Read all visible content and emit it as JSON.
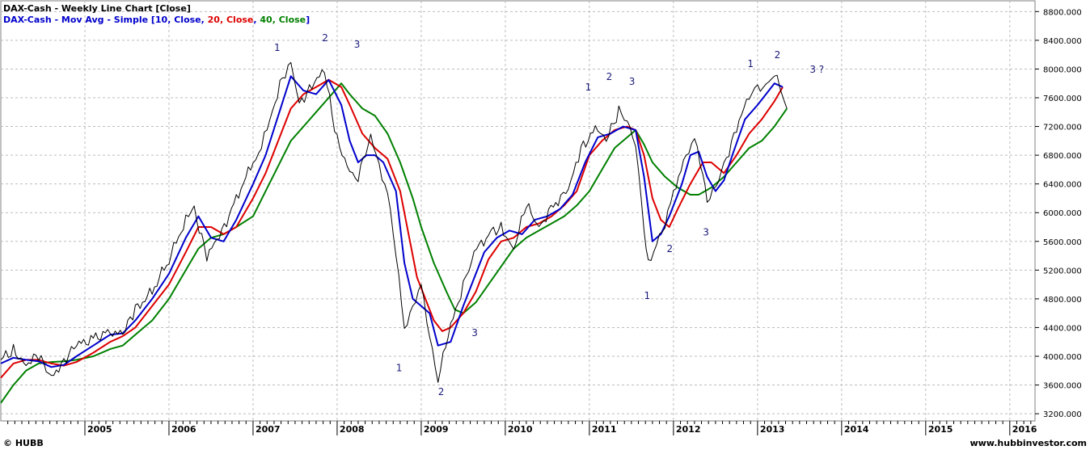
{
  "header": {
    "title": "DAX-Cash - Weekly Line Chart [Close]",
    "indicator_prefix": "DAX-Cash - Mov Avg - Simple [",
    "ma1_label": "10, Close",
    "ma2_label": "20, Close",
    "ma3_label": "40, Close",
    "sep": ", ",
    "suffix": "]"
  },
  "footer": {
    "left": "© HUBB",
    "right": "www.hubbinvestor.com"
  },
  "colors": {
    "price": "#000000",
    "ma10": "#0000cc",
    "ma20": "#dd0000",
    "ma40": "#008000",
    "grid": "#bdbdbd",
    "wave_labels": "#1a1a7a"
  },
  "chart_data": {
    "type": "line",
    "ylim": [
      3100,
      8950
    ],
    "xlim": [
      2004.0,
      2016.3
    ],
    "y_ticks": [
      "3200.000",
      "3600.000",
      "4000.000",
      "4400.000",
      "4800.000",
      "5200.000",
      "5600.000",
      "6000.000",
      "6400.000",
      "6800.000",
      "7200.000",
      "7600.000",
      "8000.000",
      "8400.000",
      "8800.000"
    ],
    "x_ticks": [
      "2005",
      "2006",
      "2007",
      "2008",
      "2009",
      "2010",
      "2011",
      "2012",
      "2013",
      "2014",
      "2015",
      "2016"
    ],
    "series": [
      {
        "name": "DAX-Cash",
        "points": [
          [
            2004.0,
            3950
          ],
          [
            2004.15,
            4080
          ],
          [
            2004.3,
            3900
          ],
          [
            2004.45,
            4000
          ],
          [
            2004.6,
            3700
          ],
          [
            2004.75,
            3950
          ],
          [
            2004.9,
            4150
          ],
          [
            2005.1,
            4250
          ],
          [
            2005.3,
            4350
          ],
          [
            2005.45,
            4300
          ],
          [
            2005.6,
            4650
          ],
          [
            2005.8,
            4900
          ],
          [
            2006.0,
            5350
          ],
          [
            2006.2,
            5900
          ],
          [
            2006.3,
            6050
          ],
          [
            2006.45,
            5400
          ],
          [
            2006.6,
            5650
          ],
          [
            2006.8,
            6200
          ],
          [
            2007.0,
            6700
          ],
          [
            2007.1,
            6900
          ],
          [
            2007.2,
            7300
          ],
          [
            2007.35,
            7900
          ],
          [
            2007.45,
            8050
          ],
          [
            2007.55,
            7500
          ],
          [
            2007.7,
            7800
          ],
          [
            2007.85,
            7950
          ],
          [
            2008.0,
            7000
          ],
          [
            2008.15,
            6600
          ],
          [
            2008.25,
            6500
          ],
          [
            2008.4,
            7050
          ],
          [
            2008.5,
            6650
          ],
          [
            2008.6,
            6300
          ],
          [
            2008.7,
            5400
          ],
          [
            2008.8,
            4400
          ],
          [
            2008.9,
            4700
          ],
          [
            2009.0,
            4950
          ],
          [
            2009.1,
            4300
          ],
          [
            2009.2,
            3700
          ],
          [
            2009.35,
            4400
          ],
          [
            2009.5,
            5000
          ],
          [
            2009.6,
            5400
          ],
          [
            2009.8,
            5700
          ],
          [
            2009.95,
            5800
          ],
          [
            2010.1,
            5500
          ],
          [
            2010.25,
            6100
          ],
          [
            2010.4,
            5800
          ],
          [
            2010.6,
            6150
          ],
          [
            2010.75,
            6300
          ],
          [
            2010.9,
            6900
          ],
          [
            2011.1,
            7200
          ],
          [
            2011.2,
            7000
          ],
          [
            2011.35,
            7400
          ],
          [
            2011.45,
            7300
          ],
          [
            2011.55,
            7000
          ],
          [
            2011.65,
            5700
          ],
          [
            2011.7,
            5300
          ],
          [
            2011.8,
            5600
          ],
          [
            2011.9,
            5800
          ],
          [
            2012.0,
            6300
          ],
          [
            2012.15,
            6800
          ],
          [
            2012.25,
            7000
          ],
          [
            2012.35,
            6550
          ],
          [
            2012.4,
            6200
          ],
          [
            2012.5,
            6300
          ],
          [
            2012.6,
            6650
          ],
          [
            2012.75,
            7200
          ],
          [
            2012.9,
            7600
          ],
          [
            2013.0,
            7700
          ],
          [
            2013.1,
            7800
          ],
          [
            2013.2,
            7950
          ],
          [
            2013.3,
            7600
          ],
          [
            2013.35,
            7450
          ]
        ]
      },
      {
        "name": "10, Close",
        "points": [
          [
            2004.0,
            3900
          ],
          [
            2004.15,
            3980
          ],
          [
            2004.3,
            3950
          ],
          [
            2004.45,
            3930
          ],
          [
            2004.6,
            3850
          ],
          [
            2004.75,
            3880
          ],
          [
            2004.9,
            4000
          ],
          [
            2005.1,
            4150
          ],
          [
            2005.3,
            4300
          ],
          [
            2005.45,
            4320
          ],
          [
            2005.6,
            4500
          ],
          [
            2005.8,
            4800
          ],
          [
            2006.0,
            5150
          ],
          [
            2006.2,
            5650
          ],
          [
            2006.35,
            5950
          ],
          [
            2006.5,
            5650
          ],
          [
            2006.65,
            5600
          ],
          [
            2006.8,
            5900
          ],
          [
            2007.0,
            6400
          ],
          [
            2007.15,
            6800
          ],
          [
            2007.3,
            7350
          ],
          [
            2007.45,
            7900
          ],
          [
            2007.6,
            7700
          ],
          [
            2007.75,
            7650
          ],
          [
            2007.9,
            7850
          ],
          [
            2008.05,
            7500
          ],
          [
            2008.15,
            7000
          ],
          [
            2008.25,
            6700
          ],
          [
            2008.35,
            6800
          ],
          [
            2008.45,
            6800
          ],
          [
            2008.55,
            6700
          ],
          [
            2008.7,
            6300
          ],
          [
            2008.8,
            5300
          ],
          [
            2008.9,
            4800
          ],
          [
            2009.0,
            4700
          ],
          [
            2009.1,
            4600
          ],
          [
            2009.2,
            4150
          ],
          [
            2009.35,
            4200
          ],
          [
            2009.5,
            4700
          ],
          [
            2009.6,
            5000
          ],
          [
            2009.75,
            5450
          ],
          [
            2009.9,
            5650
          ],
          [
            2010.05,
            5750
          ],
          [
            2010.2,
            5700
          ],
          [
            2010.35,
            5900
          ],
          [
            2010.5,
            5950
          ],
          [
            2010.65,
            6050
          ],
          [
            2010.8,
            6250
          ],
          [
            2010.95,
            6700
          ],
          [
            2011.1,
            7050
          ],
          [
            2011.25,
            7100
          ],
          [
            2011.4,
            7200
          ],
          [
            2011.55,
            7150
          ],
          [
            2011.65,
            6500
          ],
          [
            2011.75,
            5600
          ],
          [
            2011.85,
            5700
          ],
          [
            2011.95,
            5950
          ],
          [
            2012.1,
            6400
          ],
          [
            2012.2,
            6800
          ],
          [
            2012.3,
            6850
          ],
          [
            2012.4,
            6500
          ],
          [
            2012.5,
            6300
          ],
          [
            2012.6,
            6450
          ],
          [
            2012.7,
            6800
          ],
          [
            2012.85,
            7300
          ],
          [
            2013.0,
            7500
          ],
          [
            2013.1,
            7650
          ],
          [
            2013.2,
            7800
          ],
          [
            2013.3,
            7750
          ]
        ]
      },
      {
        "name": "20, Close",
        "points": [
          [
            2004.0,
            3700
          ],
          [
            2004.15,
            3900
          ],
          [
            2004.3,
            3950
          ],
          [
            2004.45,
            3950
          ],
          [
            2004.6,
            3900
          ],
          [
            2004.75,
            3870
          ],
          [
            2004.9,
            3920
          ],
          [
            2005.1,
            4050
          ],
          [
            2005.3,
            4200
          ],
          [
            2005.45,
            4280
          ],
          [
            2005.6,
            4400
          ],
          [
            2005.8,
            4700
          ],
          [
            2006.0,
            5000
          ],
          [
            2006.2,
            5450
          ],
          [
            2006.35,
            5800
          ],
          [
            2006.5,
            5800
          ],
          [
            2006.65,
            5700
          ],
          [
            2006.8,
            5800
          ],
          [
            2007.0,
            6200
          ],
          [
            2007.15,
            6550
          ],
          [
            2007.3,
            7000
          ],
          [
            2007.45,
            7450
          ],
          [
            2007.6,
            7650
          ],
          [
            2007.75,
            7750
          ],
          [
            2007.9,
            7850
          ],
          [
            2008.05,
            7750
          ],
          [
            2008.15,
            7500
          ],
          [
            2008.3,
            7100
          ],
          [
            2008.45,
            6900
          ],
          [
            2008.6,
            6750
          ],
          [
            2008.75,
            6300
          ],
          [
            2008.85,
            5700
          ],
          [
            2008.95,
            5100
          ],
          [
            2009.05,
            4800
          ],
          [
            2009.15,
            4500
          ],
          [
            2009.25,
            4350
          ],
          [
            2009.35,
            4400
          ],
          [
            2009.5,
            4600
          ],
          [
            2009.65,
            4900
          ],
          [
            2009.8,
            5350
          ],
          [
            2009.95,
            5600
          ],
          [
            2010.1,
            5650
          ],
          [
            2010.25,
            5800
          ],
          [
            2010.4,
            5850
          ],
          [
            2010.55,
            5950
          ],
          [
            2010.7,
            6100
          ],
          [
            2010.85,
            6300
          ],
          [
            2011.0,
            6800
          ],
          [
            2011.15,
            7000
          ],
          [
            2011.3,
            7150
          ],
          [
            2011.45,
            7200
          ],
          [
            2011.55,
            7150
          ],
          [
            2011.65,
            6800
          ],
          [
            2011.75,
            6200
          ],
          [
            2011.85,
            5900
          ],
          [
            2011.95,
            5800
          ],
          [
            2012.05,
            6050
          ],
          [
            2012.2,
            6400
          ],
          [
            2012.35,
            6700
          ],
          [
            2012.45,
            6700
          ],
          [
            2012.6,
            6550
          ],
          [
            2012.75,
            6800
          ],
          [
            2012.9,
            7100
          ],
          [
            2013.05,
            7300
          ],
          [
            2013.2,
            7550
          ],
          [
            2013.3,
            7750
          ]
        ]
      },
      {
        "name": "40, Close",
        "points": [
          [
            2004.0,
            3350
          ],
          [
            2004.15,
            3600
          ],
          [
            2004.3,
            3800
          ],
          [
            2004.45,
            3900
          ],
          [
            2004.6,
            3920
          ],
          [
            2004.75,
            3930
          ],
          [
            2004.9,
            3950
          ],
          [
            2005.1,
            4000
          ],
          [
            2005.3,
            4100
          ],
          [
            2005.45,
            4150
          ],
          [
            2005.6,
            4300
          ],
          [
            2005.8,
            4500
          ],
          [
            2006.0,
            4800
          ],
          [
            2006.2,
            5200
          ],
          [
            2006.35,
            5500
          ],
          [
            2006.5,
            5650
          ],
          [
            2006.65,
            5700
          ],
          [
            2006.8,
            5800
          ],
          [
            2007.0,
            5950
          ],
          [
            2007.15,
            6300
          ],
          [
            2007.3,
            6650
          ],
          [
            2007.45,
            7000
          ],
          [
            2007.6,
            7200
          ],
          [
            2007.75,
            7400
          ],
          [
            2007.9,
            7600
          ],
          [
            2008.05,
            7800
          ],
          [
            2008.15,
            7650
          ],
          [
            2008.3,
            7450
          ],
          [
            2008.45,
            7350
          ],
          [
            2008.6,
            7100
          ],
          [
            2008.75,
            6700
          ],
          [
            2008.9,
            6200
          ],
          [
            2009.0,
            5800
          ],
          [
            2009.15,
            5300
          ],
          [
            2009.3,
            4900
          ],
          [
            2009.4,
            4650
          ],
          [
            2009.5,
            4600
          ],
          [
            2009.65,
            4750
          ],
          [
            2009.8,
            5000
          ],
          [
            2009.95,
            5250
          ],
          [
            2010.1,
            5500
          ],
          [
            2010.25,
            5650
          ],
          [
            2010.4,
            5750
          ],
          [
            2010.55,
            5850
          ],
          [
            2010.7,
            5950
          ],
          [
            2010.85,
            6100
          ],
          [
            2011.0,
            6300
          ],
          [
            2011.15,
            6600
          ],
          [
            2011.3,
            6900
          ],
          [
            2011.45,
            7050
          ],
          [
            2011.55,
            7150
          ],
          [
            2011.65,
            6950
          ],
          [
            2011.75,
            6700
          ],
          [
            2011.9,
            6500
          ],
          [
            2012.05,
            6350
          ],
          [
            2012.2,
            6250
          ],
          [
            2012.3,
            6250
          ],
          [
            2012.45,
            6350
          ],
          [
            2012.6,
            6500
          ],
          [
            2012.75,
            6700
          ],
          [
            2012.9,
            6900
          ],
          [
            2013.05,
            7000
          ],
          [
            2013.2,
            7200
          ],
          [
            2013.35,
            7450
          ]
        ]
      }
    ],
    "annotations": [
      {
        "text": "1",
        "x": 2007.25,
        "y": 8250
      },
      {
        "text": "2",
        "x": 2007.82,
        "y": 8390
      },
      {
        "text": "3",
        "x": 2008.2,
        "y": 8300
      },
      {
        "text": "1",
        "x": 2008.7,
        "y": 3790
      },
      {
        "text": "2",
        "x": 2009.2,
        "y": 3460
      },
      {
        "text": "3",
        "x": 2009.6,
        "y": 4280
      },
      {
        "text": "1",
        "x": 2010.95,
        "y": 7700
      },
      {
        "text": "2",
        "x": 2011.2,
        "y": 7850
      },
      {
        "text": "3",
        "x": 2011.47,
        "y": 7780
      },
      {
        "text": "1",
        "x": 2011.65,
        "y": 4800
      },
      {
        "text": "2",
        "x": 2011.92,
        "y": 5450
      },
      {
        "text": "3",
        "x": 2012.35,
        "y": 5680
      },
      {
        "text": "1",
        "x": 2012.88,
        "y": 8030
      },
      {
        "text": "2",
        "x": 2013.2,
        "y": 8150
      },
      {
        "text": "3 ?",
        "x": 2013.62,
        "y": 7950
      }
    ]
  }
}
